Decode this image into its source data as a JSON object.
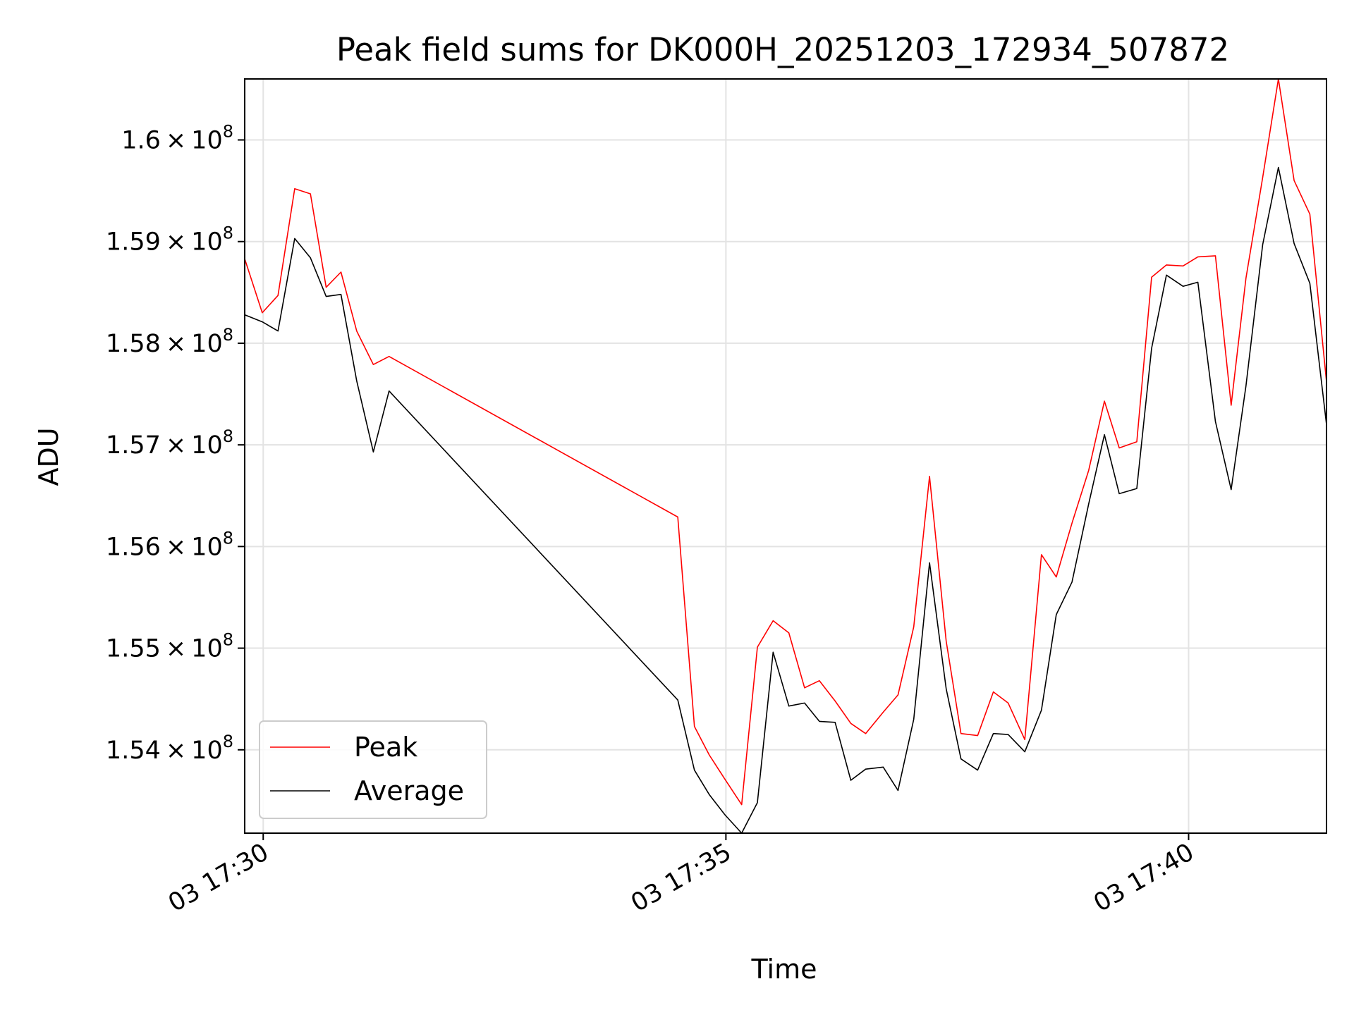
{
  "chart_data": {
    "type": "line",
    "title": "Peak field sums for DK000H_20251203_172934_507872",
    "xlabel": "Time",
    "ylabel": "ADU",
    "x_tick_labels": [
      "03 17:30",
      "03 17:35",
      "03 17:40"
    ],
    "x_tick_minutes": [
      30,
      35,
      40
    ],
    "y_tick_labels": [
      {
        "mantissa": "1.54",
        "base": "10",
        "exp": "8",
        "value": 154000000
      },
      {
        "mantissa": "1.55",
        "base": "10",
        "exp": "8",
        "value": 155000000
      },
      {
        "mantissa": "1.56",
        "base": "10",
        "exp": "8",
        "value": 156000000
      },
      {
        "mantissa": "1.57",
        "base": "10",
        "exp": "8",
        "value": 157000000
      },
      {
        "mantissa": "1.58",
        "base": "10",
        "exp": "8",
        "value": 158000000
      },
      {
        "mantissa": "1.59",
        "base": "10",
        "exp": "8",
        "value": 159000000
      },
      {
        "mantissa": "1.6",
        "base": "10",
        "exp": "8",
        "value": 160000000
      }
    ],
    "xlim": [
      29.8,
      41.49
    ],
    "ylim": [
      153180000,
      160600000
    ],
    "grid": true,
    "legend_placement": "lower-left",
    "x": [
      29.8,
      29.99,
      30.16,
      30.34,
      30.51,
      30.68,
      30.84,
      31.01,
      31.19,
      31.36,
      34.48,
      34.66,
      34.82,
      34.99,
      35.17,
      35.34,
      35.51,
      35.68,
      35.85,
      36.01,
      36.18,
      36.35,
      36.51,
      36.7,
      36.86,
      37.03,
      37.2,
      37.38,
      37.54,
      37.72,
      37.89,
      38.05,
      38.23,
      38.41,
      38.57,
      38.74,
      38.92,
      39.09,
      39.25,
      39.44,
      39.6,
      39.76,
      39.94,
      40.1,
      40.29,
      40.46,
      40.62,
      40.8,
      40.97,
      41.14,
      41.31,
      41.49
    ],
    "series": [
      {
        "name": "Peak",
        "color": "#ff0000",
        "values": [
          158830000,
          158300000,
          158470000,
          159520000,
          159470000,
          158550000,
          158700000,
          158120000,
          157790000,
          157870000,
          156290000,
          154230000,
          153950000,
          153710000,
          153460000,
          155010000,
          155270000,
          155150000,
          154610000,
          154680000,
          154480000,
          154260000,
          154160000,
          154370000,
          154540000,
          155210000,
          156690000,
          155070000,
          154160000,
          154140000,
          154570000,
          154460000,
          154100000,
          155920000,
          155700000,
          156230000,
          156750000,
          157430000,
          156970000,
          157030000,
          158650000,
          158770000,
          158760000,
          158850000,
          158860000,
          157390000,
          158640000,
          159630000,
          160600000,
          159600000,
          159270000,
          157620000
        ]
      },
      {
        "name": "Average",
        "color": "#000000",
        "values": [
          158280000,
          158210000,
          158120000,
          159030000,
          158840000,
          158460000,
          158480000,
          157630000,
          156930000,
          157530000,
          154490000,
          153800000,
          153560000,
          153360000,
          153180000,
          153480000,
          154960000,
          154430000,
          154460000,
          154280000,
          154270000,
          153700000,
          153810000,
          153830000,
          153600000,
          154300000,
          155840000,
          154600000,
          153910000,
          153800000,
          154160000,
          154150000,
          153980000,
          154390000,
          155330000,
          155650000,
          156420000,
          157100000,
          156520000,
          156570000,
          157950000,
          158670000,
          158560000,
          158600000,
          157230000,
          156560000,
          157580000,
          158970000,
          159730000,
          158980000,
          158590000,
          157200000
        ]
      }
    ]
  }
}
